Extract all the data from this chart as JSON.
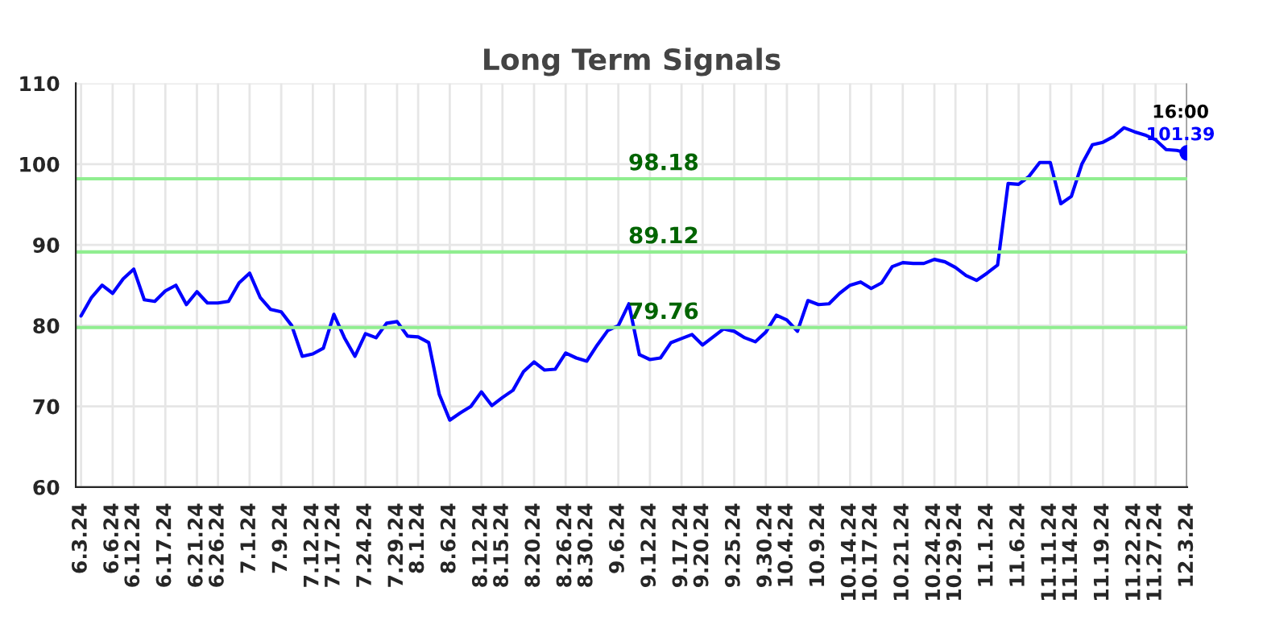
{
  "chart_data": {
    "type": "line",
    "title": "Long Term Signals",
    "categories": [
      "6.3.24",
      null,
      null,
      "6.6.24",
      null,
      "6.12.24",
      null,
      null,
      "6.17.24",
      null,
      null,
      "6.21.24",
      null,
      "6.26.24",
      null,
      null,
      "7.1.24",
      null,
      null,
      "7.9.24",
      null,
      null,
      "7.12.24",
      null,
      "7.17.24",
      null,
      null,
      "7.24.24",
      null,
      null,
      "7.29.24",
      null,
      "8.1.24",
      null,
      null,
      "8.6.24",
      null,
      null,
      "8.12.24",
      null,
      "8.15.24",
      null,
      null,
      "8.20.24",
      null,
      null,
      "8.26.24",
      null,
      "8.30.24",
      null,
      null,
      "9.6.24",
      null,
      null,
      "9.12.24",
      null,
      null,
      "9.17.24",
      null,
      "9.20.24",
      null,
      null,
      "9.25.24",
      null,
      null,
      "9.30.24",
      null,
      "10.4.24",
      null,
      null,
      "10.9.24",
      null,
      null,
      "10.14.24",
      null,
      "10.17.24",
      null,
      null,
      "10.21.24",
      null,
      null,
      "10.24.24",
      null,
      "10.29.24",
      null,
      null,
      "11.1.24",
      null,
      null,
      "11.6.24",
      null,
      null,
      "11.11.24",
      null,
      "11.14.24",
      null,
      null,
      "11.19.24",
      null,
      null,
      "11.22.24",
      null,
      "11.27.24",
      null,
      null,
      "12.3.24"
    ],
    "series": [
      {
        "color": "#0000ff",
        "values": [
          81.2,
          83.5,
          85,
          84,
          85.8,
          87,
          83.2,
          83,
          84.3,
          85,
          82.6,
          84.2,
          82.8,
          82.8,
          83,
          85.3,
          86.5,
          83.5,
          82,
          81.7,
          80,
          76.2,
          76.5,
          77.2,
          81.4,
          78.5,
          76.2,
          79,
          78.5,
          80.3,
          80.5,
          78.7,
          78.6,
          77.9,
          71.5,
          68.3,
          69.2,
          70,
          71.8,
          70.1,
          71.1,
          72,
          74.3,
          75.5,
          74.5,
          74.6,
          76.6,
          76,
          75.6,
          77.6,
          79.4,
          80,
          82.7,
          76.4,
          75.8,
          76,
          77.9,
          78.4,
          78.9,
          77.6,
          78.6,
          79.6,
          79.3,
          78.5,
          78,
          79.2,
          81.3,
          80.7,
          79.3,
          83.1,
          82.6,
          82.7,
          84,
          85,
          85.4,
          84.6,
          85.3,
          87.3,
          87.8,
          87.7,
          87.7,
          88.2,
          87.9,
          87.2,
          86.2,
          85.6,
          86.5,
          87.5,
          97.6,
          97.5,
          98.5,
          100.2,
          100.2,
          95.1,
          96,
          100,
          102.4,
          102.7,
          103.4,
          104.5,
          104,
          103.6,
          103,
          101.8,
          101.7,
          101.39
        ]
      }
    ],
    "ylim": [
      60,
      110
    ],
    "yticks": [
      60,
      70,
      80,
      90,
      100,
      110
    ],
    "grid": true,
    "legend": false,
    "ref_lines": [
      {
        "axis": "y",
        "value": 98.18,
        "label": "98.18",
        "color": "#90ee90"
      },
      {
        "axis": "y",
        "value": 89.12,
        "label": "89.12",
        "color": "#90ee90"
      },
      {
        "axis": "y",
        "value": 79.76,
        "label": "79.76",
        "color": "#90ee90"
      }
    ],
    "annotations": [
      {
        "text": "16:00",
        "x": "12.3.24",
        "y": 101.39
      },
      {
        "text": "101.39",
        "x": "12.3.24",
        "y": 101.39
      }
    ]
  }
}
